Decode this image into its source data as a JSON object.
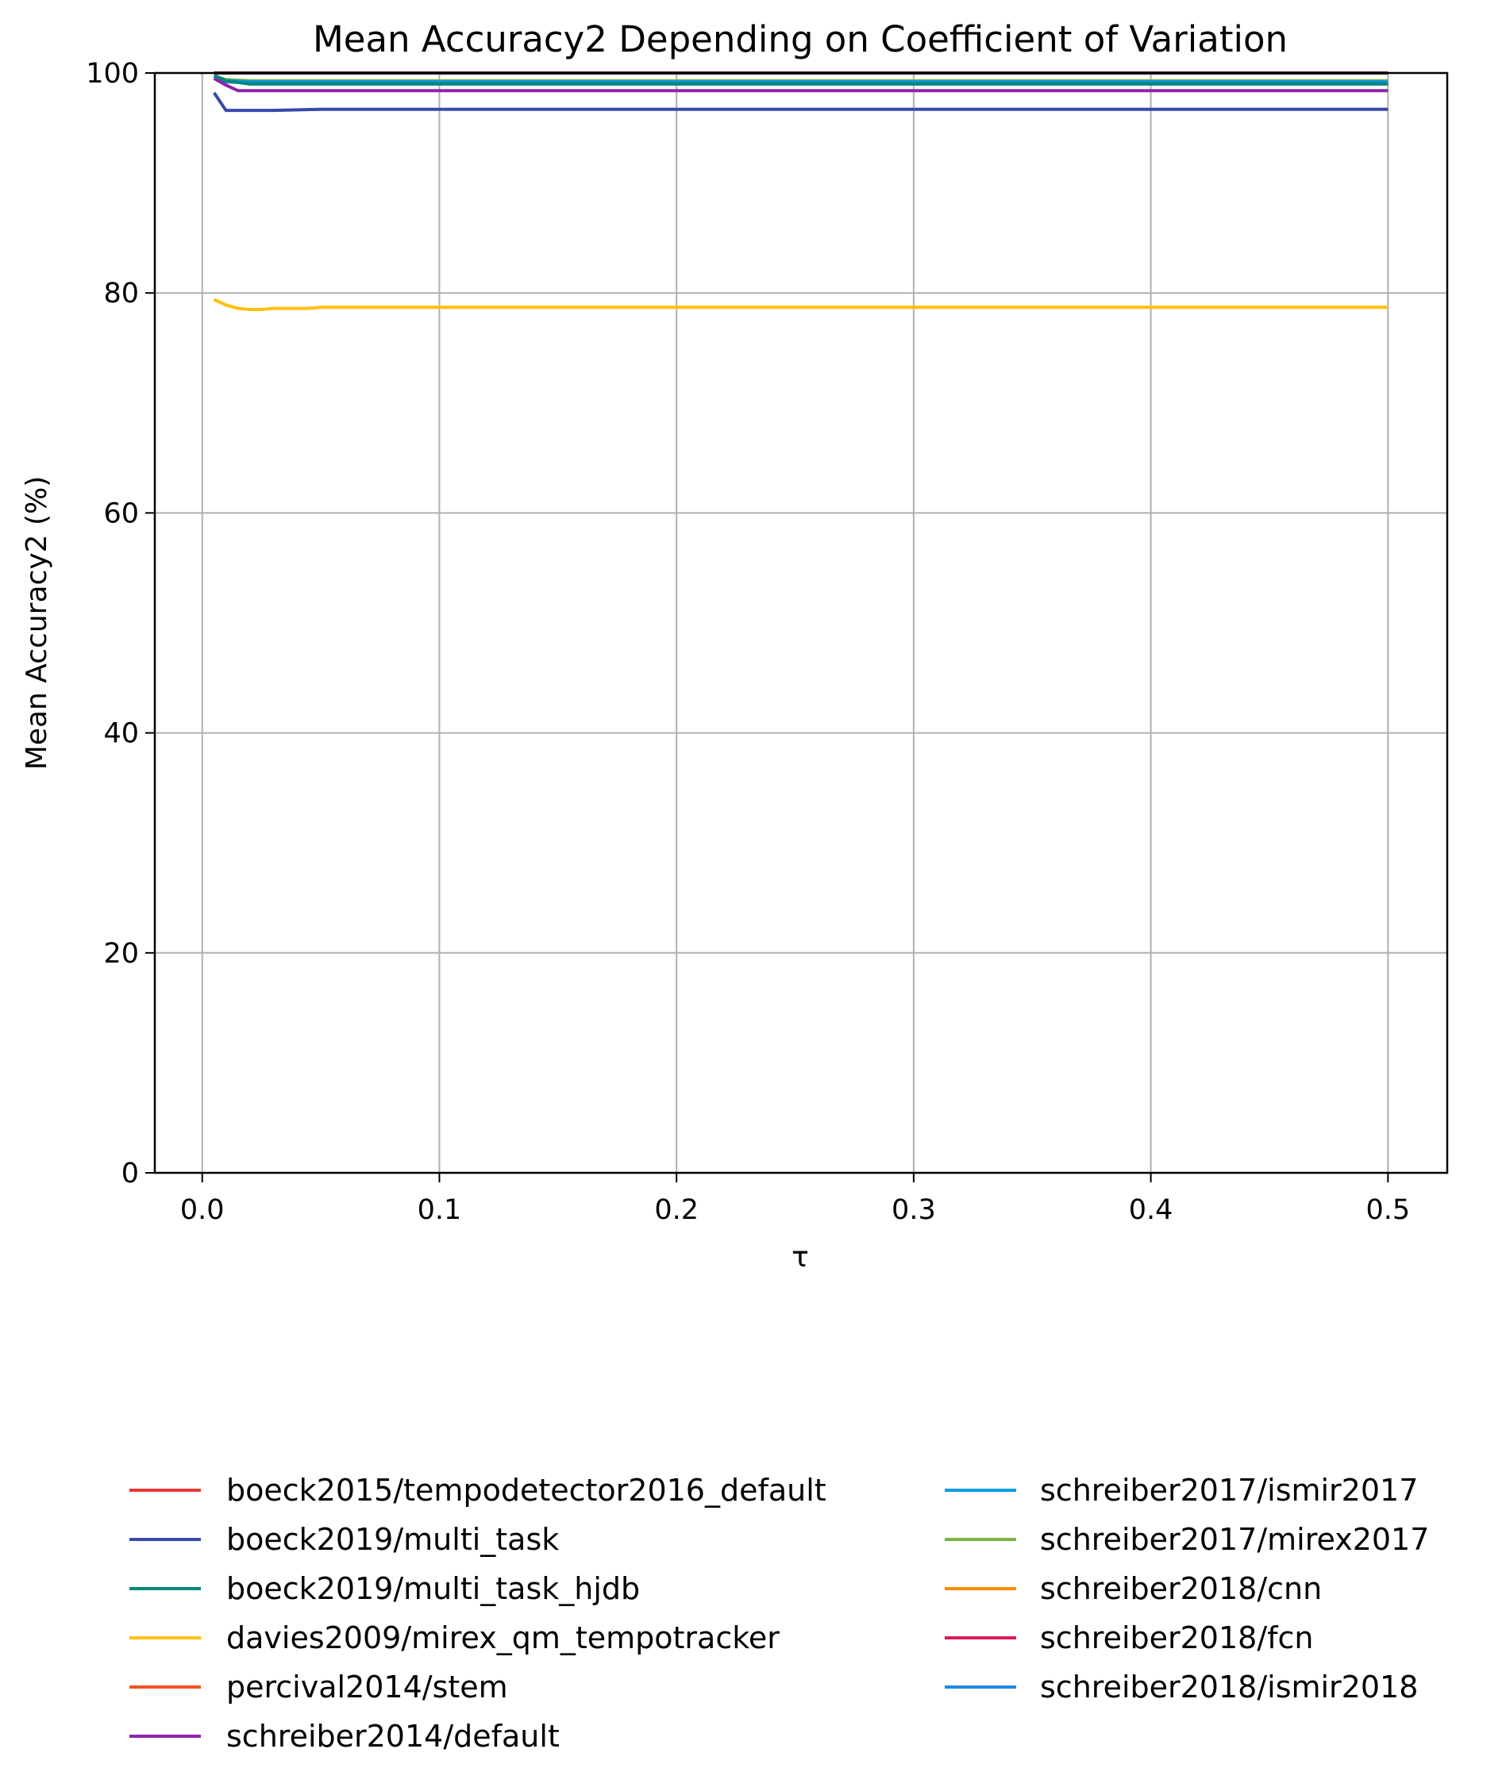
{
  "chart_data": {
    "type": "line",
    "title": "Mean Accuracy2 Depending on Coefficient of Variation",
    "xlabel": "τ",
    "ylabel": "Mean Accuracy2 (%)",
    "xlim": [
      -0.02,
      0.525
    ],
    "ylim": [
      0,
      100
    ],
    "x_ticks": [
      0.0,
      0.1,
      0.2,
      0.3,
      0.4,
      0.5
    ],
    "x_tick_labels": [
      "0.0",
      "0.1",
      "0.2",
      "0.3",
      "0.4",
      "0.5"
    ],
    "y_ticks": [
      0,
      20,
      40,
      60,
      80,
      100
    ],
    "y_tick_labels": [
      "0",
      "20",
      "40",
      "60",
      "80",
      "100"
    ],
    "grid": true,
    "legend_position": "below plot, two columns",
    "series": [
      {
        "name": "boeck2015/tempodetector2016_default",
        "color": "#e53935",
        "x": [
          0.005,
          0.5
        ],
        "y": [
          100.0,
          100.0
        ]
      },
      {
        "name": "boeck2019/multi_task",
        "color": "#3949ab",
        "x": [
          0.005,
          0.01,
          0.02,
          0.03,
          0.05,
          0.1,
          0.2,
          0.3,
          0.4,
          0.5
        ],
        "y": [
          98.2,
          96.6,
          96.6,
          96.6,
          96.7,
          96.7,
          96.7,
          96.7,
          96.7,
          96.7
        ]
      },
      {
        "name": "boeck2019/multi_task_hjdb",
        "color": "#00897b",
        "x": [
          0.005,
          0.01,
          0.02,
          0.05,
          0.1,
          0.2,
          0.3,
          0.4,
          0.5
        ],
        "y": [
          99.8,
          99.3,
          99.0,
          99.0,
          99.0,
          99.0,
          99.0,
          99.0,
          99.0
        ]
      },
      {
        "name": "davies2009/mirex_qm_tempotracker",
        "color": "#fdc00a",
        "x": [
          0.005,
          0.01,
          0.015,
          0.02,
          0.025,
          0.03,
          0.035,
          0.04,
          0.045,
          0.05,
          0.1,
          0.2,
          0.3,
          0.4,
          0.5
        ],
        "y": [
          79.4,
          78.9,
          78.6,
          78.5,
          78.5,
          78.6,
          78.6,
          78.6,
          78.6,
          78.7,
          78.7,
          78.7,
          78.7,
          78.7,
          78.7
        ]
      },
      {
        "name": "percival2014/stem",
        "color": "#f4511e",
        "x": [
          0.005,
          0.5
        ],
        "y": [
          100.0,
          100.0
        ]
      },
      {
        "name": "schreiber2014/default",
        "color": "#8e24aa",
        "x": [
          0.005,
          0.01,
          0.015,
          0.02,
          0.05,
          0.1,
          0.2,
          0.3,
          0.4,
          0.5
        ],
        "y": [
          99.5,
          98.9,
          98.4,
          98.4,
          98.4,
          98.4,
          98.4,
          98.4,
          98.4,
          98.4
        ]
      },
      {
        "name": "schreiber2017/ismir2017",
        "color": "#039be5",
        "x": [
          0.005,
          0.01,
          0.02,
          0.05,
          0.1,
          0.2,
          0.3,
          0.4,
          0.5
        ],
        "y": [
          99.6,
          99.3,
          99.2,
          99.2,
          99.2,
          99.2,
          99.2,
          99.2,
          99.2
        ]
      },
      {
        "name": "schreiber2017/mirex2017",
        "color": "#7cb342",
        "x": [
          0.005,
          0.01,
          0.02,
          0.05,
          0.1,
          0.2,
          0.3,
          0.4,
          0.5
        ],
        "y": [
          99.7,
          99.4,
          99.3,
          99.3,
          99.3,
          99.3,
          99.3,
          99.3,
          99.3
        ]
      },
      {
        "name": "schreiber2018/cnn",
        "color": "#fb8c00",
        "x": [
          0.005,
          0.5
        ],
        "y": [
          100.0,
          100.0
        ]
      },
      {
        "name": "schreiber2018/fcn",
        "color": "#d81b60",
        "x": [
          0.005,
          0.5
        ],
        "y": [
          100.0,
          100.0
        ]
      },
      {
        "name": "schreiber2018/ismir2018",
        "color": "#1e88e5",
        "x": [
          0.005,
          0.01,
          0.02,
          0.05,
          0.1,
          0.2,
          0.3,
          0.4,
          0.5
        ],
        "y": [
          99.7,
          99.2,
          99.1,
          99.1,
          99.1,
          99.1,
          99.1,
          99.1,
          99.1
        ]
      }
    ],
    "top_line_color": "#4e1a1a"
  }
}
